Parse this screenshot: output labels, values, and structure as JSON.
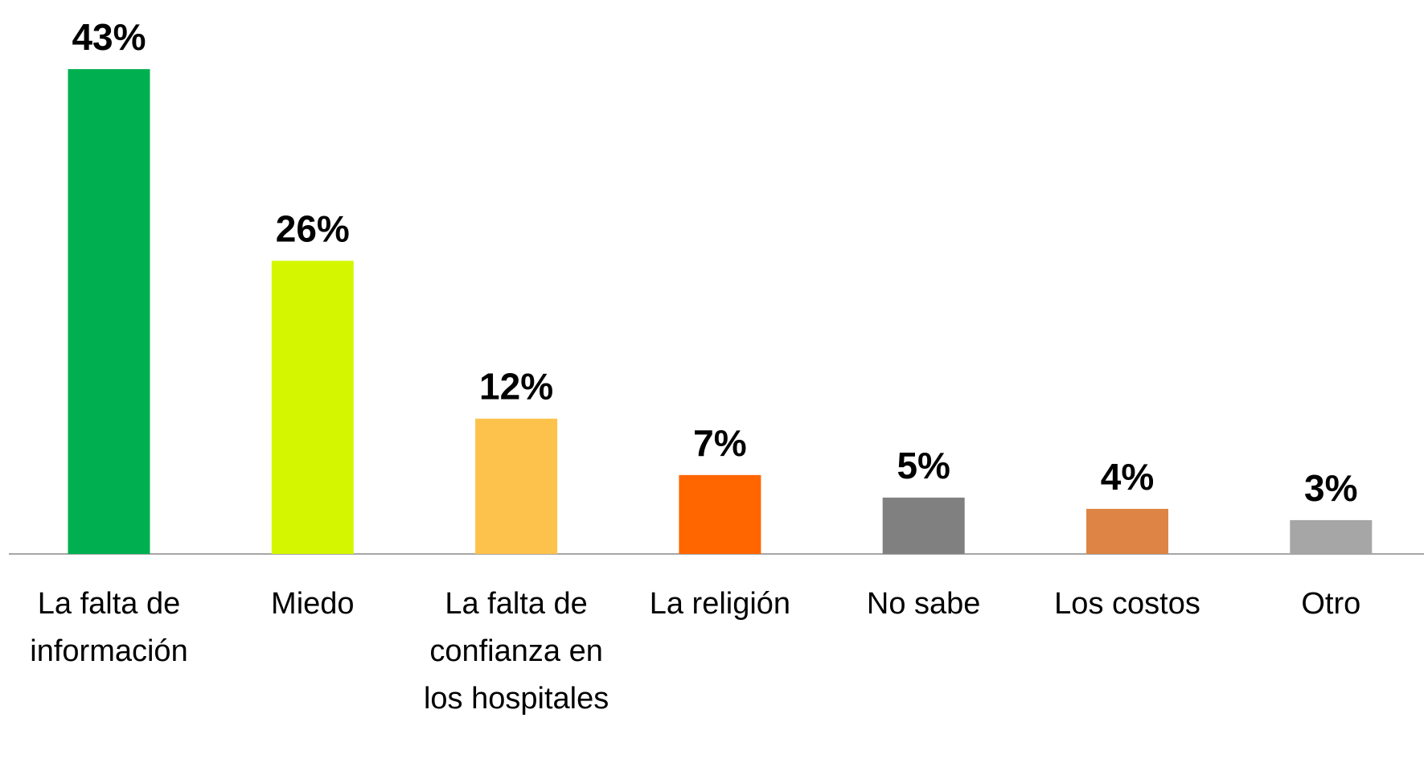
{
  "chart_data": {
    "type": "bar",
    "categories": [
      "La falta de información",
      "Miedo",
      "La falta de confianza en los hospitales",
      "La religión",
      "No sabe",
      "Los costos",
      "Otro"
    ],
    "values": [
      43,
      26,
      12,
      7,
      5,
      4,
      3
    ],
    "value_labels": [
      "43%",
      "26%",
      "12%",
      "7%",
      "5%",
      "4%",
      "3%"
    ],
    "colors": [
      "#00b050",
      "#d4f700",
      "#fdc24b",
      "#ff6600",
      "#808080",
      "#de8444",
      "#a6a6a6"
    ]
  }
}
